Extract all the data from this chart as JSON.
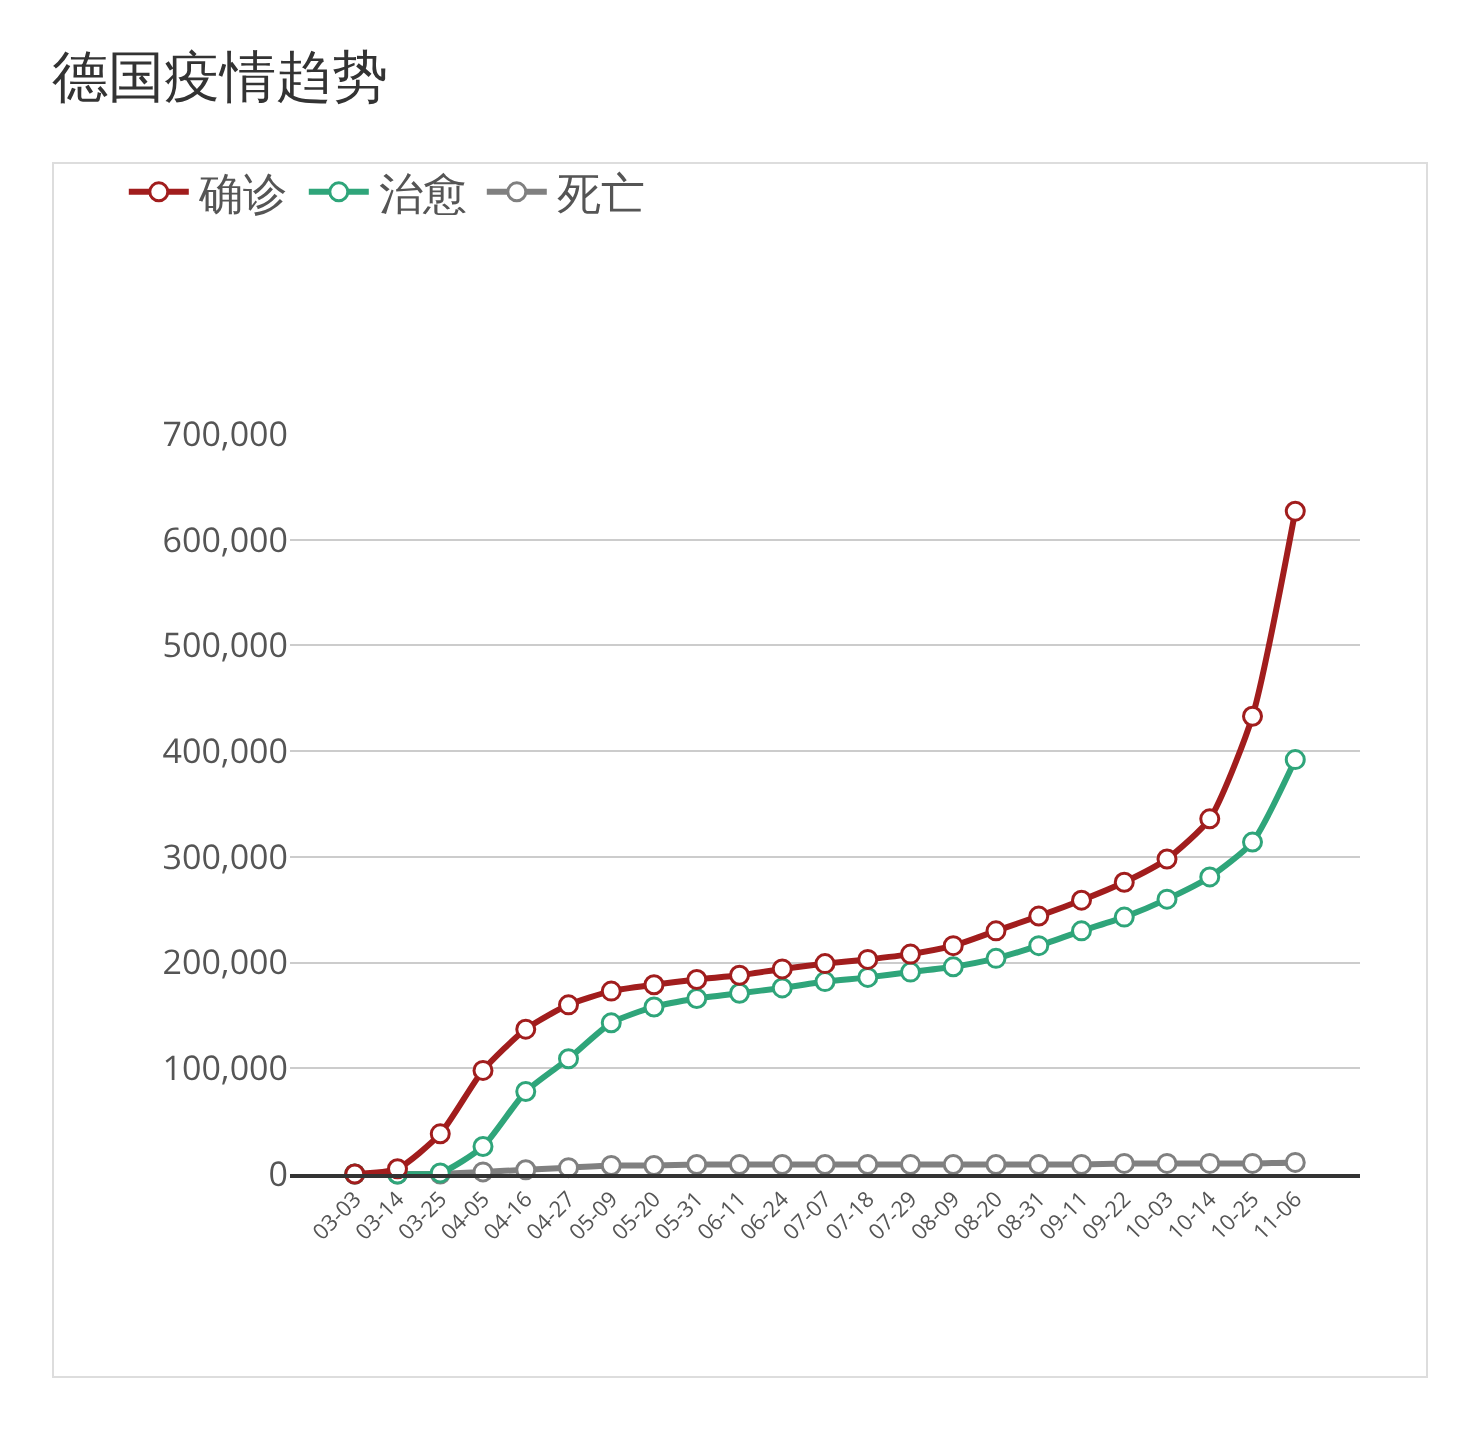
{
  "chart_data": {
    "type": "line",
    "title": "德国疫情趋势",
    "categories": [
      "03-03",
      "03-14",
      "03-25",
      "04-05",
      "04-16",
      "04-27",
      "05-09",
      "05-20",
      "05-31",
      "06-11",
      "06-24",
      "07-07",
      "07-18",
      "07-29",
      "08-09",
      "08-20",
      "08-31",
      "09-11",
      "09-22",
      "10-03",
      "10-14",
      "10-25",
      "11-06"
    ],
    "series": [
      {
        "name": "确诊",
        "color": "#a11d1d",
        "values": [
          0,
          5000,
          38000,
          98000,
          137000,
          160000,
          173000,
          179000,
          184000,
          188000,
          194000,
          199000,
          203000,
          208000,
          216000,
          230000,
          244000,
          259000,
          276000,
          298000,
          336000,
          433000,
          627000
        ]
      },
      {
        "name": "治愈",
        "color": "#2fa57a",
        "values": [
          0,
          0,
          1000,
          26000,
          78000,
          109000,
          143000,
          158000,
          166000,
          171000,
          176000,
          182000,
          186000,
          191000,
          196000,
          204000,
          216000,
          230000,
          243000,
          260000,
          281000,
          314000,
          392000
        ]
      },
      {
        "name": "死亡",
        "color": "#808080",
        "values": [
          0,
          0,
          0,
          2000,
          4000,
          6000,
          8000,
          8000,
          9000,
          9000,
          9000,
          9000,
          9000,
          9000,
          9000,
          9000,
          9000,
          9000,
          10000,
          10000,
          10000,
          10000,
          11000
        ]
      }
    ],
    "ylim": [
      0,
      700000
    ],
    "yticks": [
      0,
      {
        "value": 100000,
        "label": "100,000"
      },
      {
        "value": 200000,
        "label": "200,000"
      },
      {
        "value": 300000,
        "label": "300,000"
      },
      {
        "value": 400000,
        "label": "400,000"
      },
      {
        "value": 500000,
        "label": "500,000"
      },
      {
        "value": 600000,
        "label": "600,000"
      },
      {
        "value": 700000,
        "label": "700,000"
      }
    ],
    "grid": "y",
    "legend": "top left",
    "marker": "circle",
    "line_style": "solid"
  }
}
